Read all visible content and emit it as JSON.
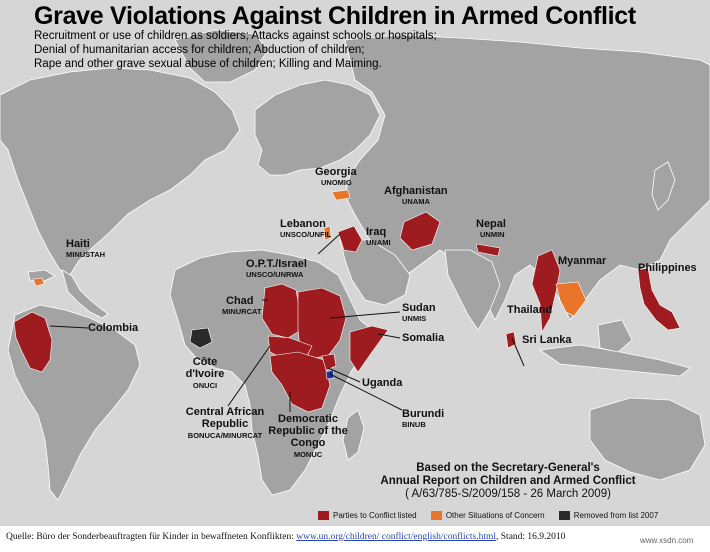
{
  "title": "Grave Violations Against Children in Armed Conflict",
  "subtitle_lines": [
    "Recruitment or use of children as soldiers; Attacks against schools or hospitals;",
    "Denial of humanitarian access for children; Abduction of children;",
    "Rape and other grave sexual abuse of children; Killing and Maiming."
  ],
  "colors": {
    "ocean": "#d6d6d6",
    "land": "#a3a3a3",
    "parties": "#9e1b1f",
    "other": "#e8752a",
    "removed": "#2a2a2a",
    "burundi": "#1a2fa0"
  },
  "countries": [
    {
      "name": "Georgia",
      "mission": "UNOMIG",
      "category": "other"
    },
    {
      "name": "Afghanistan",
      "mission": "UNAMA",
      "category": "parties"
    },
    {
      "name": "Nepal",
      "mission": "UNMIN",
      "category": "parties"
    },
    {
      "name": "Haiti",
      "mission": "MINUSTAH",
      "category": "other"
    },
    {
      "name": "Lebanon",
      "mission": "UNSCO/UNFIL",
      "category": "other"
    },
    {
      "name": "Iraq",
      "mission": "UNAMI",
      "category": "parties"
    },
    {
      "name": "Myanmar",
      "mission": "",
      "category": "parties"
    },
    {
      "name": "Philippines",
      "mission": "",
      "category": "parties"
    },
    {
      "name": "O.P.T./Israel",
      "mission": "UNSCO/UNRWA",
      "category": "other"
    },
    {
      "name": "Chad",
      "mission": "MINURCAT",
      "category": "parties"
    },
    {
      "name": "Sudan",
      "mission": "UNMIS",
      "category": "parties"
    },
    {
      "name": "Thailand",
      "mission": "",
      "category": "other"
    },
    {
      "name": "Colombia",
      "mission": "",
      "category": "parties"
    },
    {
      "name": "Somalia",
      "mission": "",
      "category": "parties"
    },
    {
      "name": "Sri Lanka",
      "mission": "",
      "category": "parties"
    },
    {
      "name": "Côte d'Ivoire",
      "mission": "ONUCI",
      "category": "removed"
    },
    {
      "name": "Uganda",
      "mission": "",
      "category": "parties"
    },
    {
      "name": "Central African Republic",
      "mission": "BONUCA/MINURCAT",
      "category": "parties"
    },
    {
      "name": "Burundi",
      "mission": "BINUB",
      "category": "parties"
    },
    {
      "name": "Democratic Republic of the Congo",
      "mission": "MONUC",
      "category": "parties"
    }
  ],
  "note": {
    "line1": "Based on the Secretary-General's",
    "line2": "Annual Report  on Children and Armed Conflict",
    "line3": "( A/63/785-S/2009/158 - 26 March 2009)"
  },
  "legend": [
    {
      "label": "Parties to Conflict listed",
      "color": "#9e1b1f"
    },
    {
      "label": "Other Situations of Concern",
      "color": "#e8752a"
    },
    {
      "label": "Removed from list 2007",
      "color": "#2a2a2a"
    }
  ],
  "footer": {
    "prefix": "Quelle: Büro der Sonderbeauftragten für Kinder in bewaffneten Konflikten: ",
    "link": "www.un.org/children/ conflict/english/conflicts.html",
    "suffix": ", Stand: 16.9.2010",
    "watermark": "www.xsdn.com"
  }
}
